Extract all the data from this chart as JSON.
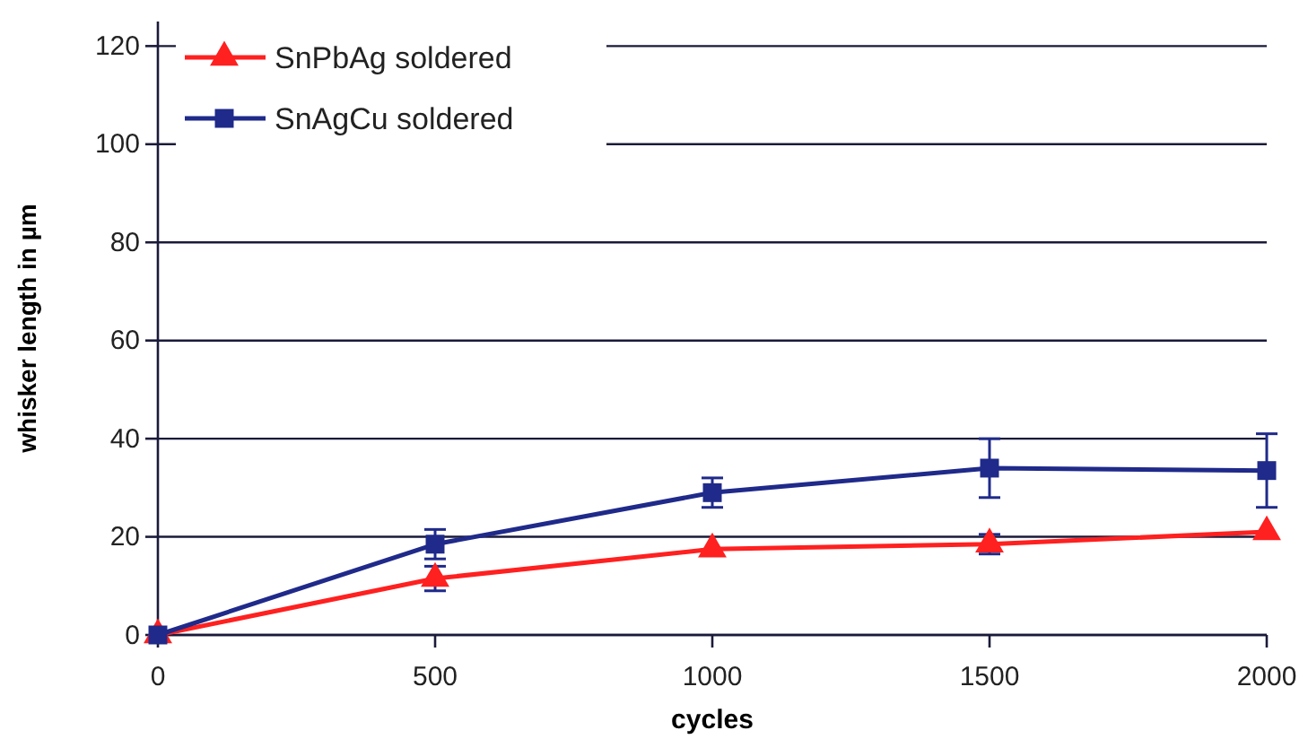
{
  "chart_data": {
    "type": "line",
    "xlabel": "cycles",
    "ylabel": "whisker length in µm",
    "x": [
      0,
      500,
      1000,
      1500,
      2000
    ],
    "series": [
      {
        "name": "SnPbAg soldered",
        "color": "#ff2020",
        "marker": "triangle",
        "values": [
          0,
          11.5,
          17.5,
          18.5,
          21
        ],
        "errors": [
          null,
          2.5,
          null,
          2,
          null
        ]
      },
      {
        "name": "SnAgCu soldered",
        "color": "#1f2a8a",
        "marker": "square",
        "values": [
          0,
          18.5,
          29,
          34,
          33.5
        ],
        "errors": [
          null,
          3,
          3,
          6,
          7.5
        ]
      }
    ],
    "xlim": [
      0,
      2000
    ],
    "xticks": [
      0,
      500,
      1000,
      1500,
      2000
    ],
    "ylim": [
      0,
      125
    ],
    "yticks": [
      0,
      20,
      40,
      60,
      80,
      100,
      120
    ],
    "grid": "y",
    "legend": "top left",
    "line_style": "solid"
  }
}
